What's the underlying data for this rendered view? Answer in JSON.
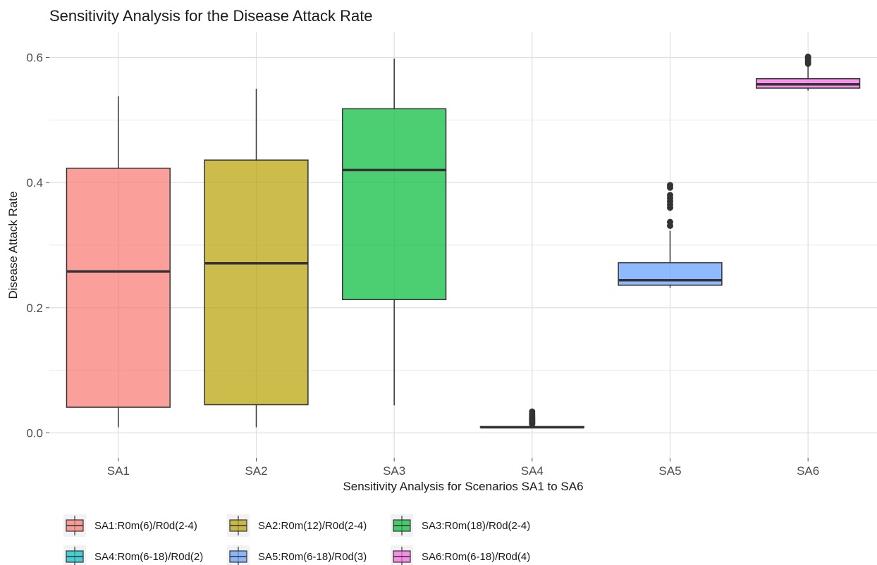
{
  "chart_data": {
    "type": "boxplot",
    "title": "Sensitivity Analysis for the Disease Attack Rate",
    "xlabel": "Sensitivity Analysis for Scenarios SA1 to SA6",
    "ylabel": "Disease Attack Rate",
    "ylim": [
      -0.04,
      0.64
    ],
    "yticks": [
      0.0,
      0.2,
      0.4,
      0.6
    ],
    "ytick_labels": [
      "0.0",
      "0.2",
      "0.4",
      "0.6"
    ],
    "grid": true,
    "legend_position": "bottom",
    "categories": [
      "SA1",
      "SA2",
      "SA3",
      "SA4",
      "SA5",
      "SA6"
    ],
    "series": [
      {
        "name": "SA1:R0m(6)/R0d(2-4)",
        "category": "SA1",
        "color": "#F8766D",
        "min": 0.009,
        "q1": 0.041,
        "median": 0.258,
        "q3": 0.423,
        "max": 0.538,
        "outliers": []
      },
      {
        "name": "SA2:R0m(12)/R0d(2-4)",
        "category": "SA2",
        "color": "#B79F00",
        "min": 0.009,
        "q1": 0.045,
        "median": 0.271,
        "q3": 0.436,
        "max": 0.55,
        "outliers": []
      },
      {
        "name": "SA3:R0m(18)/R0d(2-4)",
        "category": "SA3",
        "color": "#00BA38",
        "min": 0.044,
        "q1": 0.213,
        "median": 0.42,
        "q3": 0.518,
        "max": 0.598,
        "outliers": []
      },
      {
        "name": "SA4:R0m(6-18)/R0d(2)",
        "category": "SA4",
        "color": "#00BFC4",
        "min": 0.008,
        "q1": 0.009,
        "median": 0.009,
        "q3": 0.01,
        "max": 0.012,
        "outliers": [
          0.014,
          0.016,
          0.018,
          0.02,
          0.022,
          0.024,
          0.027,
          0.03,
          0.034
        ]
      },
      {
        "name": "SA5:R0m(6-18)/R0d(3)",
        "category": "SA5",
        "color": "#619CFF",
        "min": 0.232,
        "q1": 0.236,
        "median": 0.244,
        "q3": 0.272,
        "max": 0.323,
        "outliers": [
          0.331,
          0.337,
          0.36,
          0.365,
          0.37,
          0.375,
          0.38,
          0.392,
          0.396
        ]
      },
      {
        "name": "SA6:R0m(6-18)/R0d(4)",
        "category": "SA6",
        "color": "#F564E3",
        "min": 0.547,
        "q1": 0.551,
        "median": 0.557,
        "q3": 0.566,
        "max": 0.586,
        "outliers": [
          0.59,
          0.594,
          0.598,
          0.601
        ]
      }
    ]
  }
}
